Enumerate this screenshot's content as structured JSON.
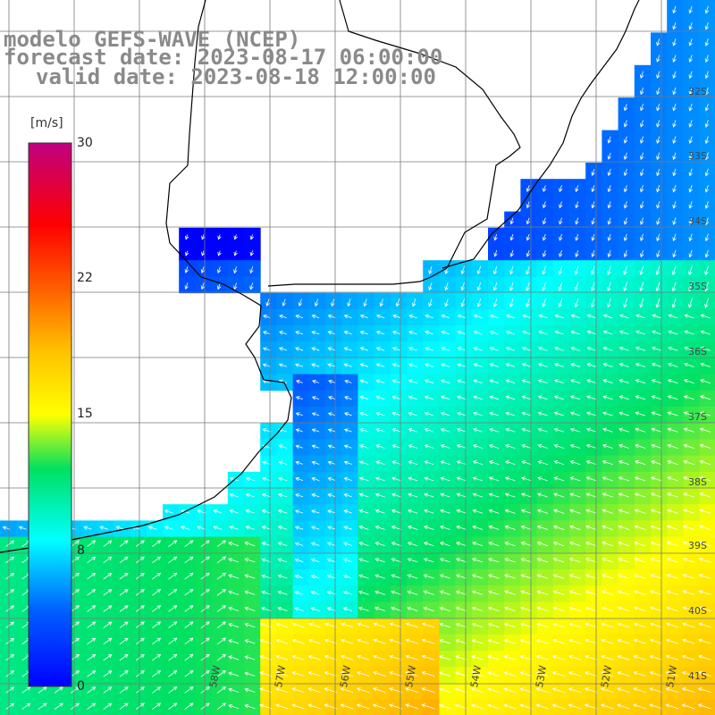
{
  "titles": {
    "model": "modelo GEFS-WAVE (NCEP)",
    "forecast": "forecast date: 2023-08-17 06:00:00",
    "valid": "valid date: 2023-08-18 12:00:00"
  },
  "colorbar": {
    "unit": "[m/s]",
    "ticks": [
      "30",
      "22",
      "15",
      "8",
      "0"
    ],
    "tick_values": [
      30,
      22,
      15,
      8,
      0
    ],
    "range": [
      0,
      30
    ],
    "colors": [
      "#0000ff",
      "#00a0ff",
      "#00ffff",
      "#00e000",
      "#ffff00",
      "#ff8000",
      "#ff0000",
      "#c00080"
    ]
  },
  "lat_labels": [
    "32S",
    "33S",
    "34S",
    "35S",
    "36S",
    "37S",
    "38S",
    "39S",
    "40S",
    "41S"
  ],
  "lon_labels": [
    "58W",
    "57W",
    "56W",
    "55W",
    "54W",
    "53W",
    "52W",
    "51W"
  ],
  "field": {
    "description": "wind speed (m/s) with direction arrows over ocean",
    "colors": {
      "land": "#ffffff",
      "grid": "#606060",
      "coast": "#000000",
      "arrow": "#ffffff"
    }
  }
}
